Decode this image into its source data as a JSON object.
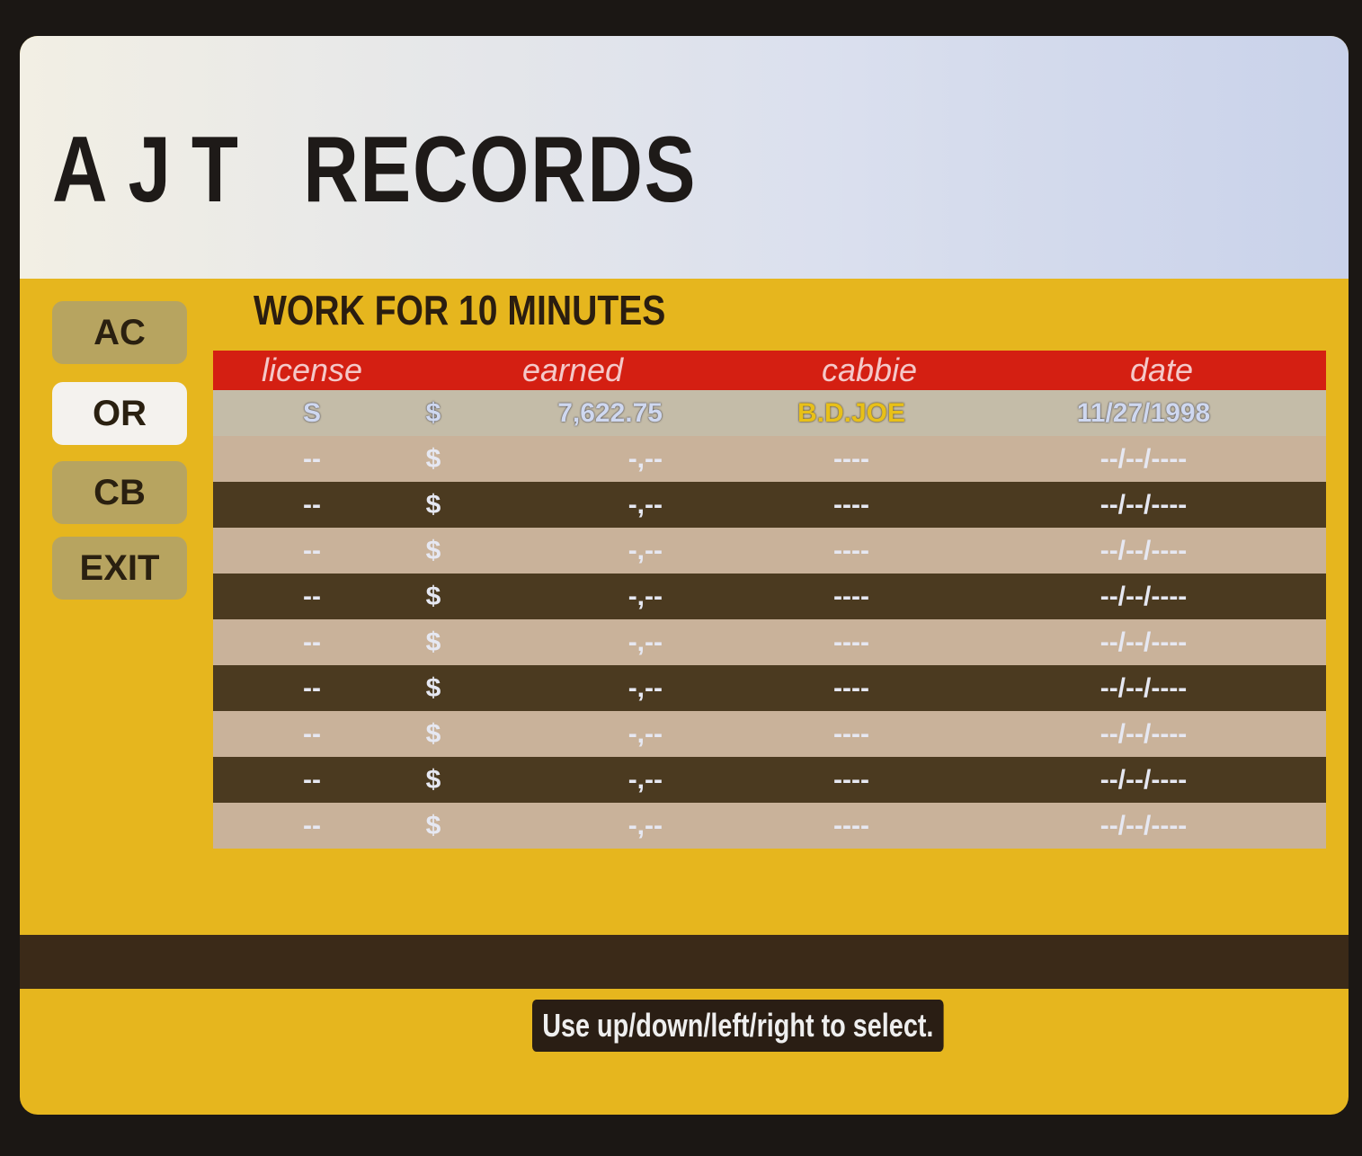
{
  "title": {
    "left": "AJT",
    "right": "RECORDS"
  },
  "subtitle": "WORK FOR 10 MINUTES",
  "menu": [
    {
      "label": "AC"
    },
    {
      "label": "OR",
      "selected": true
    },
    {
      "label": "CB"
    },
    {
      "label": "EXIT"
    }
  ],
  "table": {
    "headers": [
      "license",
      "earned",
      "cabbie",
      "date"
    ],
    "rows": [
      {
        "license": "S",
        "currency": "$",
        "earned": "7,622.75",
        "cabbie": "B.D.JOE",
        "date": "11/27/1998"
      },
      {
        "license": "--",
        "currency": "$",
        "earned": "-,--",
        "cabbie": "----",
        "date": "--/--/----"
      },
      {
        "license": "--",
        "currency": "$",
        "earned": "-,--",
        "cabbie": "----",
        "date": "--/--/----"
      },
      {
        "license": "--",
        "currency": "$",
        "earned": "-,--",
        "cabbie": "----",
        "date": "--/--/----"
      },
      {
        "license": "--",
        "currency": "$",
        "earned": "-,--",
        "cabbie": "----",
        "date": "--/--/----"
      },
      {
        "license": "--",
        "currency": "$",
        "earned": "-,--",
        "cabbie": "----",
        "date": "--/--/----"
      },
      {
        "license": "--",
        "currency": "$",
        "earned": "-,--",
        "cabbie": "----",
        "date": "--/--/----"
      },
      {
        "license": "--",
        "currency": "$",
        "earned": "-,--",
        "cabbie": "----",
        "date": "--/--/----"
      },
      {
        "license": "--",
        "currency": "$",
        "earned": "-,--",
        "cabbie": "----",
        "date": "--/--/----"
      },
      {
        "license": "--",
        "currency": "$",
        "earned": "-,--",
        "cabbie": "----",
        "date": "--/--/----"
      }
    ]
  },
  "hint": "Use up/down/left/right to select.",
  "colors": {
    "background": "#e6b61e",
    "header": "#d41f12",
    "highlight_name": "#e8c018"
  }
}
